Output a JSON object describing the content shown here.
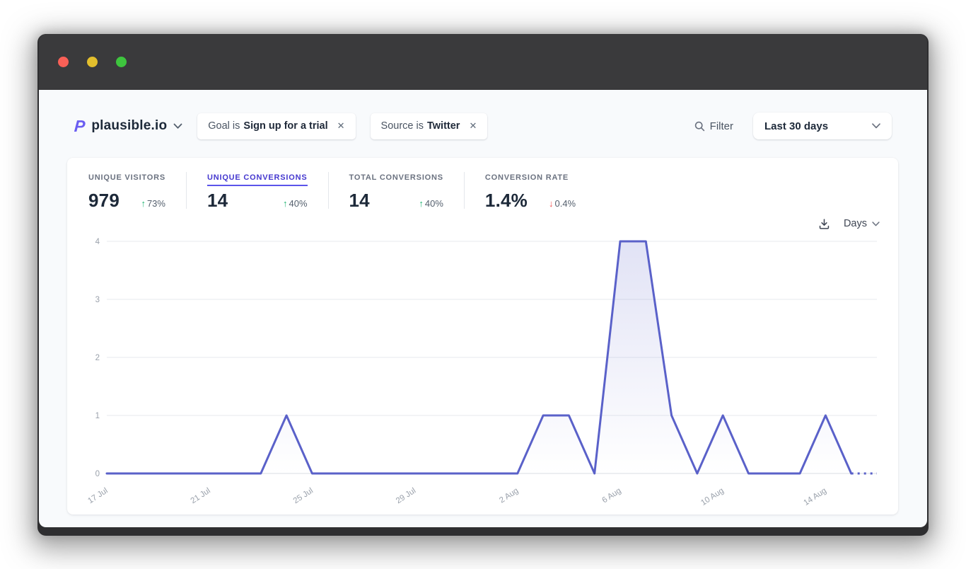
{
  "window": {
    "traffic_lights": [
      "close",
      "minimize",
      "zoom"
    ]
  },
  "header": {
    "site_name": "plausible.io",
    "filters": [
      {
        "prefix": "Goal is",
        "value": "Sign up for a trial"
      },
      {
        "prefix": "Source is",
        "value": "Twitter"
      }
    ],
    "filter_label": "Filter",
    "date_range": "Last 30 days"
  },
  "stats": [
    {
      "label": "UNIQUE VISITORS",
      "value": "979",
      "delta": "73%",
      "direction": "up",
      "active": false
    },
    {
      "label": "UNIQUE CONVERSIONS",
      "value": "14",
      "delta": "40%",
      "direction": "up",
      "active": true
    },
    {
      "label": "TOTAL CONVERSIONS",
      "value": "14",
      "delta": "40%",
      "direction": "up",
      "active": false
    },
    {
      "label": "CONVERSION RATE",
      "value": "1.4%",
      "delta": "0.4%",
      "direction": "down",
      "active": false
    }
  ],
  "chart_controls": {
    "interval_label": "Days"
  },
  "icons": {
    "close": "✕",
    "up_arrow": "↑",
    "down_arrow": "↓"
  },
  "colors": {
    "accent": "#5a61c9",
    "active_tab": "#4538cf",
    "positive": "#22b573",
    "negative": "#f05252",
    "background": "#f8fafc",
    "card": "#ffffff",
    "titlebar": "#3a3a3c"
  },
  "chart_data": {
    "type": "line",
    "x": [
      "17 Jul",
      "18 Jul",
      "19 Jul",
      "20 Jul",
      "21 Jul",
      "22 Jul",
      "23 Jul",
      "24 Jul",
      "25 Jul",
      "26 Jul",
      "27 Jul",
      "28 Jul",
      "29 Jul",
      "30 Jul",
      "31 Jul",
      "1 Aug",
      "2 Aug",
      "3 Aug",
      "4 Aug",
      "5 Aug",
      "6 Aug",
      "7 Aug",
      "8 Aug",
      "9 Aug",
      "10 Aug",
      "11 Aug",
      "12 Aug",
      "13 Aug",
      "14 Aug",
      "15 Aug",
      "16 Aug"
    ],
    "values": [
      0,
      0,
      0,
      0,
      0,
      0,
      0,
      1,
      0,
      0,
      0,
      0,
      0,
      0,
      0,
      0,
      0,
      1,
      1,
      0,
      4,
      4,
      1,
      0,
      1,
      0,
      0,
      0,
      1,
      0,
      0
    ],
    "ylim": [
      0,
      4
    ],
    "yticks": [
      0,
      1,
      2,
      3,
      4
    ],
    "xtick_every": 4,
    "xtick_labels": [
      "17 Jul",
      "21 Jul",
      "25 Jul",
      "29 Jul",
      "2 Aug",
      "6 Aug",
      "10 Aug",
      "14 Aug"
    ],
    "grid": true,
    "legend": "none",
    "line_color": "#5a61c9",
    "incomplete_last_segment_dashed": true
  }
}
